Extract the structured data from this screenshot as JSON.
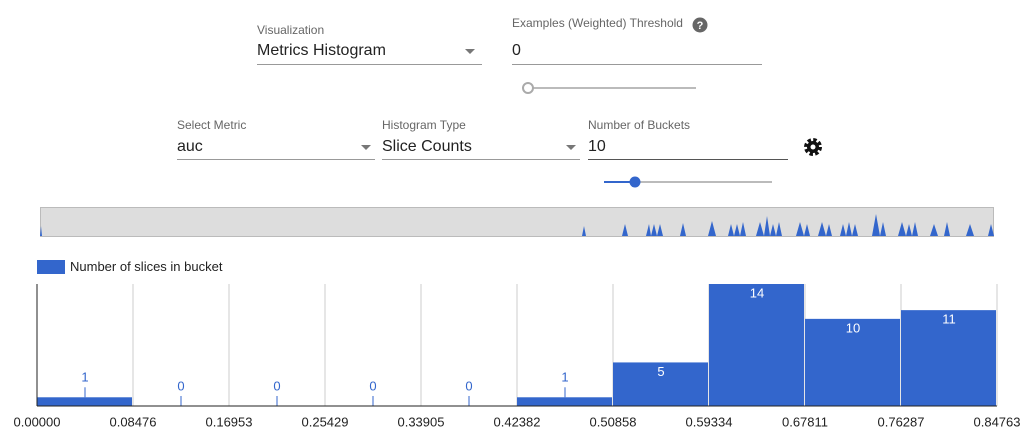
{
  "controls": {
    "visualization": {
      "label": "Visualization",
      "value": "Metrics Histogram"
    },
    "threshold": {
      "label": "Examples (Weighted) Threshold",
      "value": "0"
    },
    "metric": {
      "label": "Select Metric",
      "value": "auc"
    },
    "histogram_type": {
      "label": "Histogram Type",
      "value": "Slice Counts"
    },
    "buckets": {
      "label": "Number of Buckets",
      "value": "10"
    }
  },
  "chart_data": {
    "type": "histogram",
    "bins": [
      0,
      0.08476,
      0.16953,
      0.25429,
      0.33905,
      0.42382,
      0.50858,
      0.59334,
      0.67811,
      0.76287,
      0.84763
    ],
    "series": [
      {
        "name": "Number of slices in bucket",
        "color": "#3366cc",
        "values": [
          1,
          0,
          0,
          0,
          0,
          1,
          5,
          14,
          10,
          11
        ]
      }
    ],
    "xlim": [
      0,
      0.84763
    ],
    "xticks": [
      {
        "value": 0,
        "label": "0.00000"
      },
      0.08476,
      0.16953,
      0.25429,
      0.33905,
      0.42382,
      0.50858,
      0.59334,
      0.67811,
      0.76287,
      0.84763
    ],
    "ylim": [
      0,
      14
    ],
    "grid": true,
    "legend": "top-left"
  }
}
